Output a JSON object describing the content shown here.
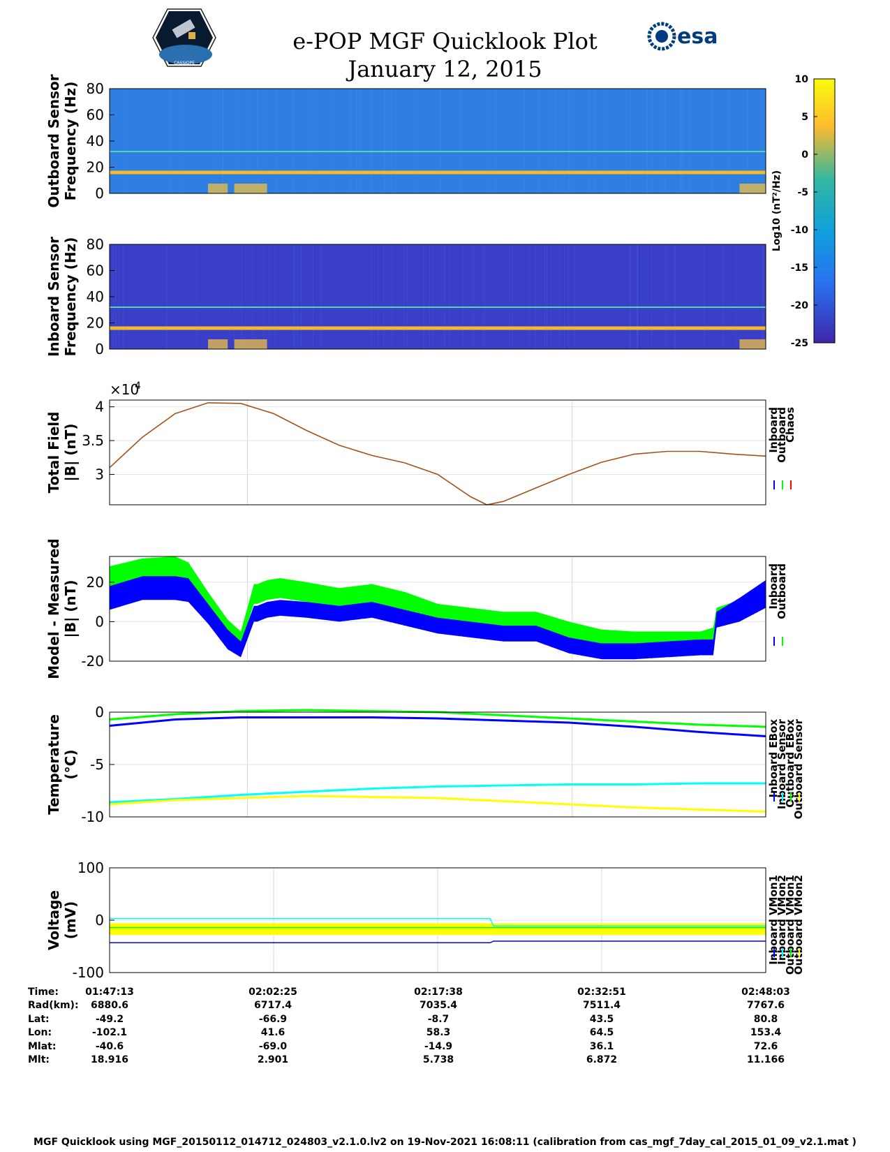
{
  "page": {
    "title_line1": "e-POP MGF Quicklook Plot",
    "title_line2": "January 12, 2015",
    "esa_logo_text": "esa",
    "cassiope_logo_text": "CASSIOPE",
    "footer": "MGF Quicklook using MGF_20150112_014712_024803_v2.1.0.lv2 on 19-Nov-2021 16:08:11 (calibration from cas_mgf_7day_cal_2015_01_09_v2.1.mat )"
  },
  "colors": {
    "blue": "#0000ff",
    "green": "#00ff00",
    "red": "#ff0000",
    "cyan": "#00ffff",
    "yellow": "#ffff00",
    "orange_line": "#a0521b",
    "spec_bg_outboard": "#2f7fe3",
    "spec_bg_inboard": "#3a3fc8",
    "spec_line": "#f5b82e"
  },
  "chart_data": [
    {
      "type": "heatmap",
      "id": "outboard",
      "ylabel": [
        "Outboard Sensor",
        "Frequency (Hz)"
      ],
      "ylim": [
        0,
        80
      ],
      "yticks": [
        0,
        20,
        40,
        60,
        80
      ],
      "ytick_labels": [
        "0",
        "20",
        "40",
        "60",
        "80"
      ],
      "bands_hz": [
        16,
        32
      ],
      "colorbar": {
        "label": "Log10 (nT²/Hz)",
        "range": [
          -25,
          10
        ],
        "ticks": [
          10,
          5,
          0,
          -5,
          -10,
          -15,
          -20,
          -25
        ],
        "tick_labels": [
          "10",
          "5",
          "0",
          "-5",
          "-10",
          "-15",
          "-20",
          "-25"
        ]
      }
    },
    {
      "type": "heatmap",
      "id": "inboard",
      "ylabel": [
        "Inboard Sensor",
        "Frequency (Hz)"
      ],
      "ylim": [
        0,
        80
      ],
      "yticks": [
        0,
        20,
        40,
        60,
        80
      ],
      "ytick_labels": [
        "0",
        "20",
        "40",
        "60",
        "80"
      ],
      "bands_hz": [
        16,
        32
      ]
    },
    {
      "type": "line",
      "id": "total",
      "ylabel": [
        "Total Field",
        "|B| (nT)"
      ],
      "exponent_label": "×10",
      "exponent_power": "4",
      "ylim": [
        2.55,
        4.1
      ],
      "yticks": [
        3,
        3.5,
        4
      ],
      "ytick_labels": [
        "3",
        "3.5",
        "4"
      ],
      "legend": [
        "Inboard",
        "Outboard",
        "Chaos"
      ],
      "x": [
        0,
        0.05,
        0.1,
        0.15,
        0.2,
        0.25,
        0.3,
        0.35,
        0.4,
        0.45,
        0.5,
        0.55,
        0.575,
        0.6,
        0.65,
        0.7,
        0.75,
        0.8,
        0.85,
        0.9,
        0.95,
        1.0
      ],
      "y": [
        3.1,
        3.55,
        3.9,
        4.06,
        4.05,
        3.9,
        3.65,
        3.43,
        3.28,
        3.17,
        3.0,
        2.67,
        2.55,
        2.6,
        2.8,
        3.0,
        3.18,
        3.3,
        3.34,
        3.34,
        3.3,
        3.27
      ]
    },
    {
      "type": "area",
      "id": "residual",
      "ylabel": [
        "Model - Measured",
        "|B| (nT)"
      ],
      "ylim": [
        -20,
        33
      ],
      "yticks": [
        -20,
        0,
        20
      ],
      "ytick_labels": [
        "-20",
        "0",
        "20"
      ],
      "legend": [
        "Inboard",
        "Outboard"
      ],
      "x": [
        0,
        0.05,
        0.1,
        0.12,
        0.15,
        0.18,
        0.2,
        0.22,
        0.225,
        0.24,
        0.26,
        0.3,
        0.35,
        0.4,
        0.45,
        0.5,
        0.6,
        0.65,
        0.7,
        0.75,
        0.8,
        0.85,
        0.9,
        0.92,
        0.925,
        0.96,
        1.0
      ],
      "series": [
        {
          "name": "Outboard",
          "center": [
            22,
            26,
            27,
            24,
            10,
            -3,
            -8,
            14,
            14,
            16,
            17,
            15,
            12,
            14,
            10,
            4,
            0,
            0,
            -5,
            -9,
            -10,
            -10,
            -10,
            -8,
            2,
            6,
            14
          ],
          "half": [
            6,
            6,
            6,
            6,
            5,
            4,
            3,
            5,
            5,
            5,
            5,
            5,
            5,
            5,
            5,
            5,
            5,
            5,
            5,
            5,
            5,
            5,
            5,
            5,
            5,
            5,
            5
          ]
        },
        {
          "name": "Inboard",
          "center": [
            12,
            17,
            17,
            16,
            4,
            -9,
            -14,
            4,
            4,
            6,
            7,
            6,
            4,
            6,
            2,
            -2,
            -6,
            -6,
            -12,
            -15,
            -15,
            -14,
            -13,
            -13,
            1,
            6,
            14
          ],
          "half": [
            6,
            6,
            6,
            6,
            5,
            5,
            4,
            4,
            4,
            4,
            4,
            4,
            4,
            4,
            4,
            4,
            4,
            4,
            4,
            4,
            4,
            4,
            4,
            4,
            4,
            6,
            7
          ]
        }
      ]
    },
    {
      "type": "line",
      "id": "temperature",
      "ylabel": [
        "Temperature",
        "(°C)"
      ],
      "ylim": [
        -10,
        0
      ],
      "yticks": [
        -10,
        -5,
        0
      ],
      "ytick_labels": [
        "-10",
        "-5",
        "0"
      ],
      "legend": [
        "Inboard EBox",
        "Inboard Sensor",
        "Outboard EBox",
        "Outboard Sensor"
      ],
      "x": [
        0,
        0.1,
        0.2,
        0.3,
        0.4,
        0.5,
        0.6,
        0.7,
        0.8,
        0.9,
        1.0
      ],
      "series": [
        {
          "name": "Inboard EBox",
          "values": [
            -1.3,
            -0.7,
            -0.5,
            -0.5,
            -0.5,
            -0.6,
            -0.8,
            -1.0,
            -1.4,
            -1.9,
            -2.3
          ]
        },
        {
          "name": "Inboard Sensor",
          "values": [
            -8.6,
            -8.3,
            -7.9,
            -7.6,
            -7.3,
            -7.1,
            -7.0,
            -6.9,
            -6.9,
            -6.8,
            -6.8
          ]
        },
        {
          "name": "Outboard EBox",
          "values": [
            -0.7,
            -0.2,
            0.1,
            0.2,
            0.1,
            0.0,
            -0.3,
            -0.6,
            -0.9,
            -1.2,
            -1.4
          ]
        },
        {
          "name": "Outboard Sensor",
          "values": [
            -8.8,
            -8.4,
            -8.2,
            -8.0,
            -8.1,
            -8.2,
            -8.5,
            -8.8,
            -9.1,
            -9.3,
            -9.5
          ]
        }
      ]
    },
    {
      "type": "line",
      "id": "voltage",
      "ylabel": [
        "Voltage",
        "(mV)"
      ],
      "ylim": [
        -100,
        100
      ],
      "yticks": [
        -100,
        0,
        100
      ],
      "ytick_labels": [
        "-100",
        "0",
        "100"
      ],
      "legend": [
        "Inboard VMon1",
        "Inboard VMon2",
        "Outboard VMon1",
        "Outboard VMon2"
      ],
      "x": [
        0,
        0.58,
        0.585,
        1.0
      ],
      "series": [
        {
          "name": "Inboard VMon1",
          "values": [
            -43,
            -43,
            -40,
            -40
          ]
        },
        {
          "name": "Inboard VMon2",
          "values": [
            3,
            3,
            -11,
            -11
          ]
        },
        {
          "name": "Outboard VMon1",
          "values": [
            -14,
            -14,
            -14,
            -14
          ]
        },
        {
          "name": "Outboard VMon2",
          "values": [
            -16,
            -16,
            -16,
            -16
          ]
        }
      ]
    }
  ],
  "ephemeris": {
    "row_labels": [
      "Time:",
      "Rad(km):",
      "Lat:",
      "Lon:",
      "Mlat:",
      "Mlt:"
    ],
    "columns": [
      [
        "01:47:13",
        "6880.6",
        "-49.2",
        "-102.1",
        "-40.6",
        "18.916"
      ],
      [
        "02:02:25",
        "6717.4",
        "-66.9",
        "41.6",
        "-69.0",
        "2.901"
      ],
      [
        "02:17:38",
        "7035.4",
        "-8.7",
        "58.3",
        "-14.9",
        "5.738"
      ],
      [
        "02:32:51",
        "7511.4",
        "43.5",
        "64.5",
        "36.1",
        "6.872"
      ],
      [
        "02:48:03",
        "7767.6",
        "80.8",
        "153.4",
        "72.6",
        "11.166"
      ]
    ]
  }
}
